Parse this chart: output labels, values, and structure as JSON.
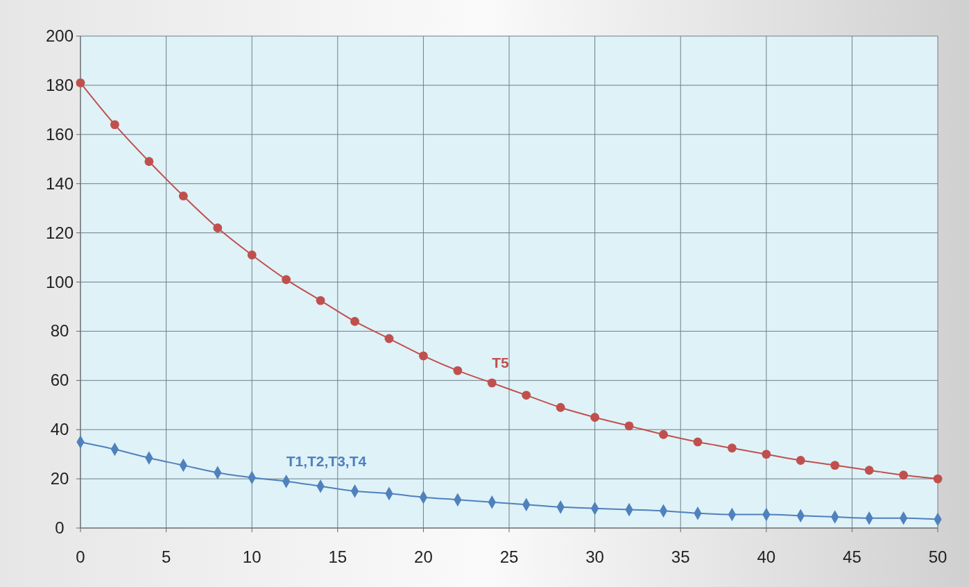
{
  "chart_data": {
    "type": "line",
    "x": [
      0,
      2,
      4,
      6,
      8,
      10,
      12,
      14,
      16,
      18,
      20,
      22,
      24,
      26,
      28,
      30,
      32,
      34,
      36,
      38,
      40,
      42,
      44,
      46,
      48,
      50
    ],
    "series": [
      {
        "name": "T5",
        "color": "#c0504d",
        "marker": "circle",
        "values": [
          181,
          164,
          149,
          135,
          122,
          111,
          101,
          92.5,
          84,
          77,
          70,
          64,
          59,
          54,
          49,
          45,
          41.5,
          38,
          35,
          32.5,
          30,
          27.5,
          25.5,
          23.5,
          21.5,
          20
        ]
      },
      {
        "name": "T1,T2,T3,T4",
        "color": "#4f81bd",
        "marker": "diamond",
        "values": [
          35,
          32,
          28.5,
          25.5,
          22.5,
          20.5,
          19,
          17,
          15,
          14,
          12.5,
          11.5,
          10.5,
          9.5,
          8.5,
          8,
          7.5,
          7,
          6,
          5.5,
          5.5,
          5,
          4.5,
          4,
          4,
          3.5
        ]
      }
    ],
    "xlim": [
      0,
      50
    ],
    "xticks": [
      0,
      5,
      10,
      15,
      20,
      25,
      30,
      35,
      40,
      45,
      50
    ],
    "ylim": [
      0,
      200
    ],
    "yticks": [
      0,
      20,
      40,
      60,
      80,
      100,
      120,
      140,
      160,
      180,
      200
    ],
    "grid": true,
    "line_style": "solid"
  }
}
